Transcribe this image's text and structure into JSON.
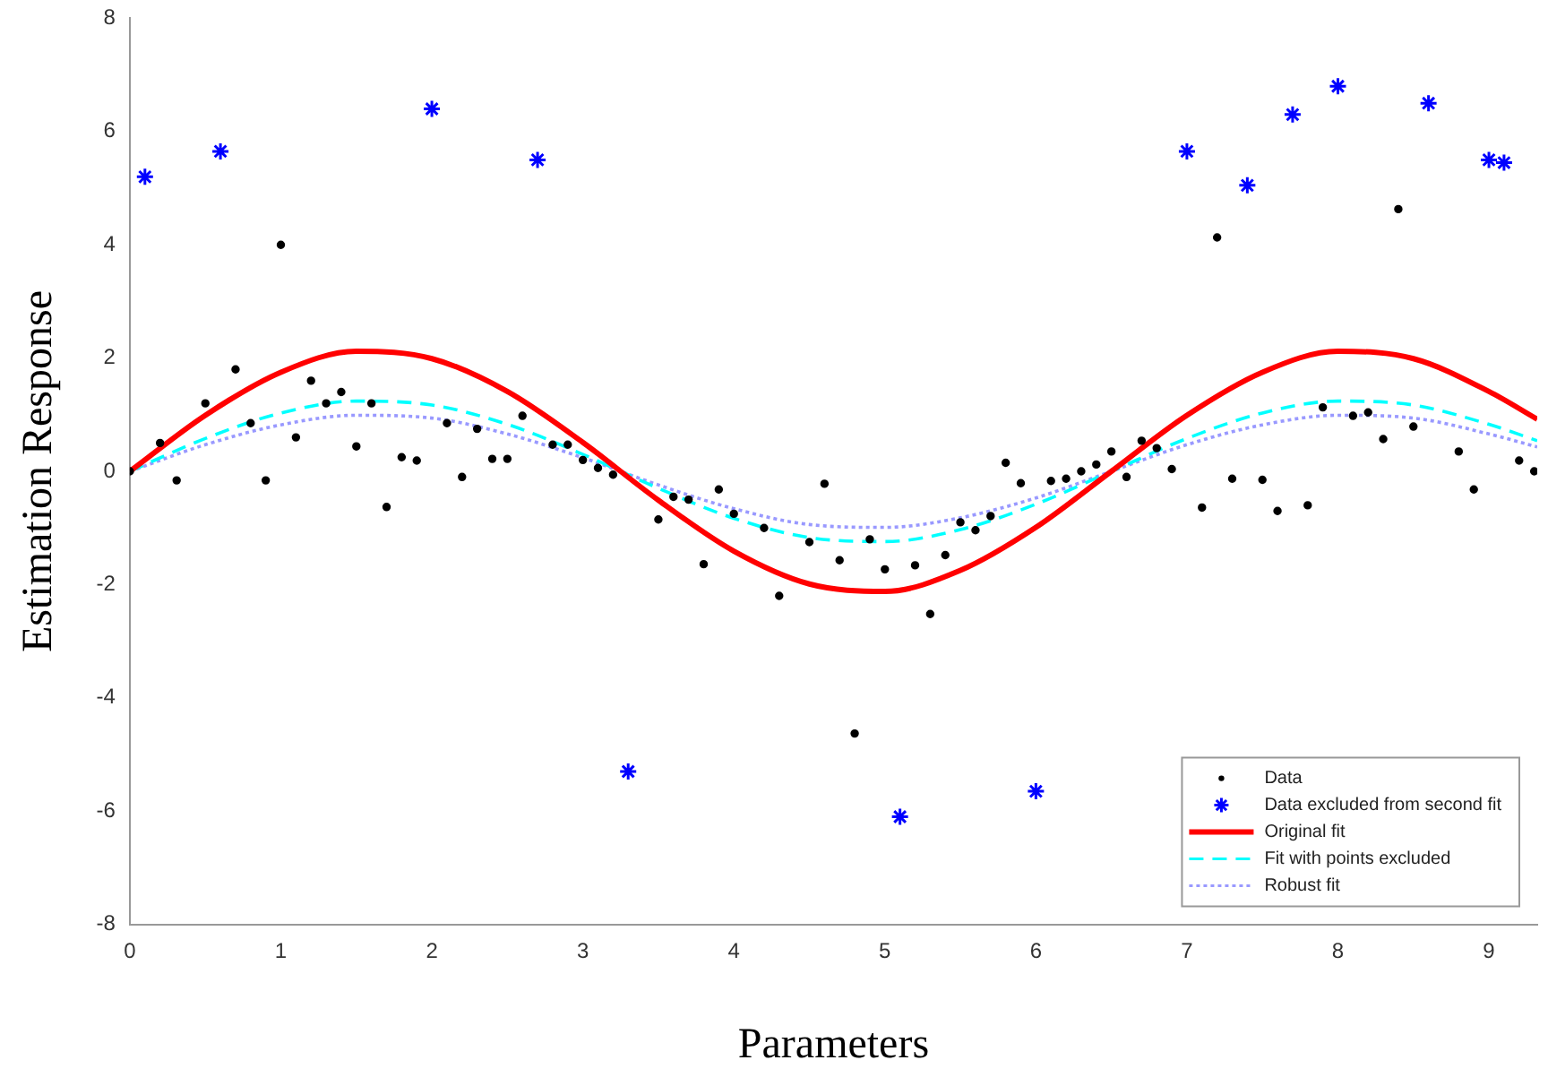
{
  "chart_data": {
    "type": "scatter",
    "xlabel": "Parameters",
    "ylabel": "Estimation Response",
    "xlim": [
      0,
      9.32
    ],
    "xticks": [
      0,
      1,
      2,
      3,
      4,
      5,
      6,
      7,
      8,
      9
    ],
    "ylim": [
      -8,
      8
    ],
    "yticks": [
      -8,
      -6,
      -4,
      -2,
      0,
      2,
      4,
      6,
      8
    ],
    "grid": false,
    "legend": "bottom right",
    "series": [
      {
        "name": "Data",
        "type": "scatter",
        "marker": "circle",
        "color": "#000000",
        "x": [
          0,
          0.2,
          0.31,
          0.5,
          0.7,
          0.8,
          0.9,
          1.0,
          1.1,
          1.2,
          1.3,
          1.4,
          1.5,
          1.6,
          1.7,
          1.8,
          1.9,
          2.1,
          2.2,
          2.3,
          2.4,
          2.5,
          2.6,
          2.8,
          2.9,
          3.0,
          3.1,
          3.2,
          3.5,
          3.6,
          3.7,
          3.8,
          3.9,
          4.0,
          4.2,
          4.3,
          4.5,
          4.6,
          4.7,
          4.8,
          4.9,
          5.0,
          5.2,
          5.3,
          5.4,
          5.5,
          5.6,
          5.7,
          5.8,
          5.9,
          6.1,
          6.2,
          6.3,
          6.4,
          6.5,
          6.6,
          6.7,
          6.8,
          6.9,
          7.1,
          7.2,
          7.3,
          7.5,
          7.6,
          7.8,
          7.9,
          8.1,
          8.2,
          8.3,
          8.4,
          8.5,
          8.8,
          8.9,
          9.2,
          9.3
        ],
        "values": [
          0,
          0.5,
          -0.16,
          1.2,
          1.8,
          0.85,
          -0.16,
          4.0,
          0.6,
          1.6,
          1.2,
          1.4,
          0.44,
          1.2,
          -0.63,
          0.25,
          0.19,
          0.85,
          -0.1,
          0.75,
          0.22,
          0.22,
          0.98,
          0.47,
          0.47,
          0.2,
          0.06,
          -0.06,
          -0.85,
          -0.45,
          -0.5,
          -1.64,
          -0.32,
          -0.75,
          -1.0,
          -2.2,
          -1.25,
          -0.22,
          -1.57,
          -4.63,
          -1.2,
          -1.73,
          -1.66,
          -2.52,
          -1.48,
          -0.9,
          -1.04,
          -0.79,
          0.15,
          -0.21,
          -0.17,
          -0.13,
          0,
          0.12,
          0.35,
          -0.1,
          0.54,
          0.41,
          0.04,
          -0.64,
          4.13,
          -0.13,
          -0.15,
          -0.7,
          -0.6,
          1.13,
          0.98,
          1.04,
          0.57,
          4.63,
          0.79,
          0.35,
          -0.32,
          0.19,
          0
        ]
      },
      {
        "name": "Data excluded from second fit",
        "type": "scatter",
        "marker": "cross",
        "color": "#0000ff",
        "x": [
          0.1,
          0.6,
          2.0,
          2.7,
          3.3,
          5.1,
          6.0,
          7.0,
          7.4,
          7.7,
          8.0,
          8.6,
          9.0,
          9.1
        ],
        "values": [
          5.2,
          5.65,
          6.4,
          5.5,
          -5.3,
          -6.1,
          -5.65,
          5.65,
          5.05,
          6.3,
          6.8,
          6.5,
          5.5,
          5.45
        ]
      },
      {
        "name": "Original fit",
        "type": "line",
        "marker": "none",
        "line_style": "solid",
        "color": "#ff0000",
        "x": [
          0,
          0.5,
          1,
          1.5,
          2,
          2.5,
          3,
          3.5,
          4,
          4.5,
          5,
          5.5,
          6,
          6.5,
          7,
          7.5,
          8,
          8.5,
          9,
          9.32
        ],
        "values": [
          0,
          0.99,
          1.75,
          2.12,
          1.99,
          1.41,
          0.51,
          -0.51,
          -1.41,
          -1.99,
          -2.12,
          -1.75,
          -0.99,
          0,
          0.99,
          1.75,
          2.12,
          1.99,
          1.41,
          0.92
        ]
      },
      {
        "name": "Fit with points excluded",
        "type": "line",
        "marker": "none",
        "line_style": "dashed",
        "color": "#00ffff",
        "x": [
          0,
          0.5,
          1,
          1.5,
          2,
          2.5,
          3,
          3.5,
          4,
          4.5,
          5,
          5.5,
          6,
          6.5,
          7,
          7.5,
          8,
          8.5,
          9,
          9.32
        ],
        "values": [
          0,
          0.58,
          1.03,
          1.24,
          1.17,
          0.83,
          0.3,
          -0.3,
          -0.83,
          -1.17,
          -1.24,
          -1.03,
          -0.58,
          0,
          0.58,
          1.03,
          1.24,
          1.17,
          0.83,
          0.54
        ]
      },
      {
        "name": "Robust fit",
        "type": "line",
        "marker": "none",
        "line_style": "dotted",
        "color": "#9999ff",
        "x": [
          0,
          0.5,
          1,
          1.5,
          2,
          2.5,
          3,
          3.5,
          4,
          4.5,
          5,
          5.5,
          6,
          6.5,
          7,
          7.5,
          8,
          8.5,
          9,
          9.32
        ],
        "values": [
          0,
          0.47,
          0.82,
          0.99,
          0.94,
          0.66,
          0.24,
          -0.24,
          -0.66,
          -0.94,
          -0.99,
          -0.82,
          -0.47,
          0,
          0.47,
          0.82,
          0.99,
          0.94,
          0.66,
          0.43
        ]
      }
    ]
  }
}
